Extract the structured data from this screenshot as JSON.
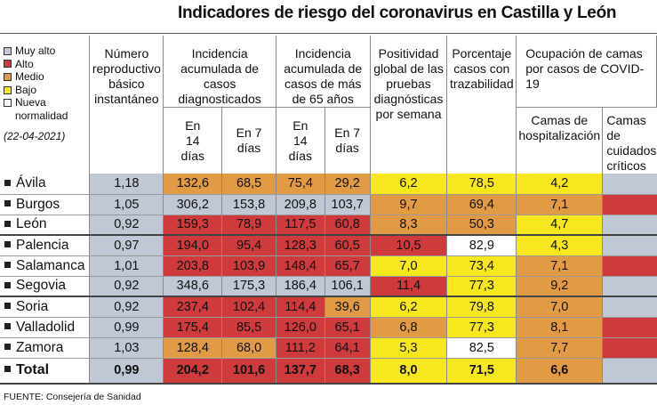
{
  "title": "Indicadores de riesgo del coronavirus en Castilla y León",
  "legend": {
    "items": [
      {
        "label": "Muy alto",
        "color": "#bfc8d4"
      },
      {
        "label": "Alto",
        "color": "#cf3a3d"
      },
      {
        "label": "Medio",
        "color": "#e19b45"
      },
      {
        "label": "Bajo",
        "color": "#f6e81c"
      },
      {
        "label": "Nueva normalidad",
        "color": "#ffffff"
      }
    ],
    "date": "(22-04-2021)"
  },
  "headers": {
    "r": "Número reproductivo básico instantáneo",
    "ia": "Incidencia acumulada de casos diagnosticados",
    "ia65": "Incidencia acumulada de casos de más de 65 años",
    "ia_14": "En 14 días",
    "ia_7": "En 7 días",
    "ia65_14": "En 14 días",
    "ia65_7": "En 7 días",
    "pos": "Positividad global de las pruebas diagnósticas por semana",
    "traz": "Porcentaje casos con trazabilidad",
    "ocup": "Ocupación de camas por casos de COVID-19",
    "camas_hosp": "Camas de hospitalización",
    "camas_uci": "Camas de cuidados críticos"
  },
  "rows": [
    {
      "name": "Ávila",
      "r": "1,18",
      "ia14": "132,6",
      "ia7": "68,5",
      "ia65_14": "75,4",
      "ia65_7": "29,2",
      "pos": "6,2",
      "traz": "78,5",
      "hosp": "4,2"
    },
    {
      "name": "Burgos",
      "r": "1,05",
      "ia14": "306,2",
      "ia7": "153,8",
      "ia65_14": "209,8",
      "ia65_7": "103,7",
      "pos": "9,7",
      "traz": "69,4",
      "hosp": "7,1"
    },
    {
      "name": "León",
      "r": "0,92",
      "ia14": "159,3",
      "ia7": "78,9",
      "ia65_14": "117,5",
      "ia65_7": "60,8",
      "pos": "8,3",
      "traz": "50,3",
      "hosp": "4,7"
    },
    {
      "name": "Palencia",
      "r": "0,97",
      "ia14": "194,0",
      "ia7": "95,4",
      "ia65_14": "128,3",
      "ia65_7": "60,5",
      "pos": "10,5",
      "traz": "82,9",
      "hosp": "4,3"
    },
    {
      "name": "Salamanca",
      "r": "1,01",
      "ia14": "203,8",
      "ia7": "103,9",
      "ia65_14": "148,4",
      "ia65_7": "65,7",
      "pos": "7,0",
      "traz": "73,4",
      "hosp": "7,1"
    },
    {
      "name": "Segovia",
      "r": "0,92",
      "ia14": "348,6",
      "ia7": "175,3",
      "ia65_14": "186,4",
      "ia65_7": "106,1",
      "pos": "11,4",
      "traz": "77,3",
      "hosp": "9,2"
    },
    {
      "name": "Soria",
      "r": "0,92",
      "ia14": "237,4",
      "ia7": "102,4",
      "ia65_14": "114,4",
      "ia65_7": "39,6",
      "pos": "6,2",
      "traz": "79,8",
      "hosp": "7,0"
    },
    {
      "name": "Valladolid",
      "r": "0,99",
      "ia14": "175,4",
      "ia7": "85,5",
      "ia65_14": "126,0",
      "ia65_7": "65,1",
      "pos": "6,8",
      "traz": "77,3",
      "hosp": "8,1"
    },
    {
      "name": "Zamora",
      "r": "1,03",
      "ia14": "128,4",
      "ia7": "68,0",
      "ia65_14": "111,2",
      "ia65_7": "64,1",
      "pos": "5,3",
      "traz": "82,5",
      "hosp": "7,7"
    }
  ],
  "total": {
    "name": "Total",
    "r": "0,99",
    "ia14": "204,2",
    "ia7": "101,6",
    "ia65_14": "137,7",
    "ia65_7": "68,3",
    "pos": "8,0",
    "traz": "71,5",
    "hosp": "6,6"
  },
  "source": "FUENTE: Consejería de Sanidad"
}
